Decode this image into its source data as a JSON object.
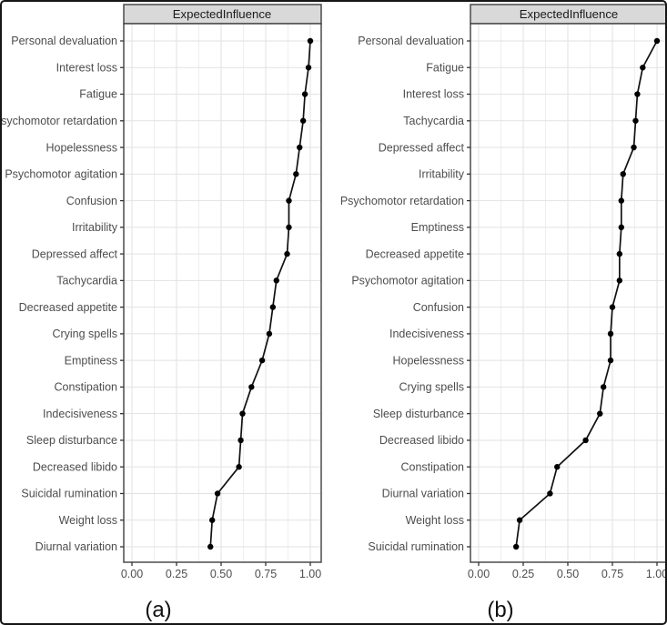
{
  "style": {
    "background": "#ffffff",
    "outer_border": "#161616",
    "strip_bg": "#d9d9d9",
    "strip_text_color": "#1a1a1a",
    "panel_border": "#3f3f3f",
    "panel_bg": "#ffffff",
    "grid_major": "#e2e2e2",
    "grid_minor": "#eeeeee",
    "axis_text": "#4d4d4d",
    "tick_color": "#333333",
    "line_color": "#111111",
    "point_color": "#000000"
  },
  "chart_data": [
    {
      "type": "line",
      "subtype": "centrality-dot-line-plot",
      "title": "ExpectedInfluence",
      "caption": "(a)",
      "orientation": "horizontal",
      "legend": "none",
      "xlim": [
        0,
        1
      ],
      "xtick_values": [
        0,
        0.25,
        0.5,
        0.75,
        1
      ],
      "xtick_labels": [
        "0.00",
        "0.25",
        "0.50",
        "0.75",
        "1.00"
      ],
      "grid": "vertical major+minor, horizontal major per category",
      "categories": [
        "Personal devaluation",
        "Interest loss",
        "Fatigue",
        "Psychomotor retardation",
        "Hopelessness",
        "Psychomotor agitation",
        "Confusion",
        "Irritability",
        "Depressed affect",
        "Tachycardia",
        "Decreased appetite",
        "Crying spells",
        "Emptiness",
        "Constipation",
        "Indecisiveness",
        "Sleep disturbance",
        "Decreased libido",
        "Suicidal rumination",
        "Weight loss",
        "Diurnal variation"
      ],
      "values": [
        1.0,
        0.99,
        0.97,
        0.96,
        0.94,
        0.92,
        0.88,
        0.88,
        0.87,
        0.81,
        0.79,
        0.77,
        0.73,
        0.67,
        0.62,
        0.61,
        0.6,
        0.48,
        0.45,
        0.44
      ]
    },
    {
      "type": "line",
      "subtype": "centrality-dot-line-plot",
      "title": "ExpectedInfluence",
      "caption": "(b)",
      "orientation": "horizontal",
      "legend": "none",
      "xlim": [
        0,
        1
      ],
      "xtick_values": [
        0,
        0.25,
        0.5,
        0.75,
        1
      ],
      "xtick_labels": [
        "0.00",
        "0.25",
        "0.50",
        "0.75",
        "1.00"
      ],
      "grid": "vertical major+minor, horizontal major per category",
      "categories": [
        "Personal devaluation",
        "Fatigue",
        "Interest loss",
        "Tachycardia",
        "Depressed affect",
        "Irritability",
        "Psychomotor retardation",
        "Emptiness",
        "Decreased appetite",
        "Psychomotor agitation",
        "Confusion",
        "Indecisiveness",
        "Hopelessness",
        "Crying spells",
        "Sleep disturbance",
        "Decreased libido",
        "Constipation",
        "Diurnal variation",
        "Weight loss",
        "Suicidal rumination"
      ],
      "values": [
        1.0,
        0.92,
        0.89,
        0.88,
        0.87,
        0.81,
        0.8,
        0.8,
        0.79,
        0.79,
        0.75,
        0.74,
        0.74,
        0.7,
        0.68,
        0.6,
        0.44,
        0.4,
        0.23,
        0.21
      ]
    }
  ]
}
